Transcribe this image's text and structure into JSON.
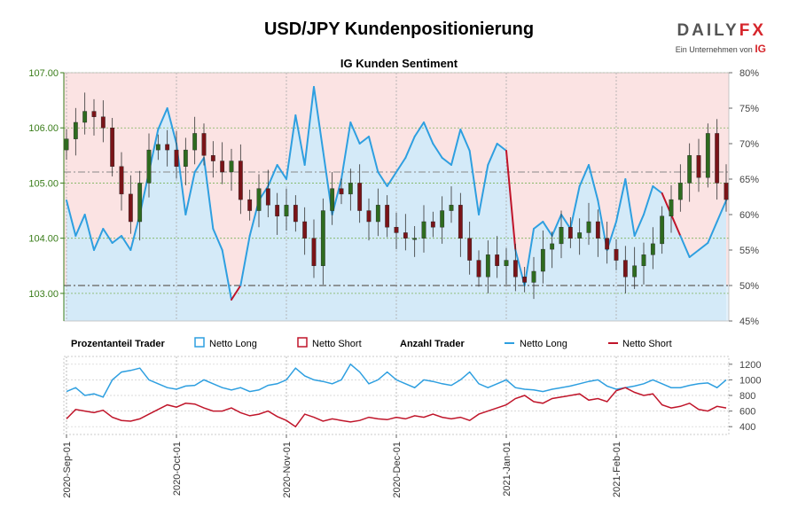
{
  "title": "USD/JPY Kundenpositionierung",
  "subtitle": "IG Kunden Sentiment",
  "logo": {
    "brand_main": "DAILY",
    "brand_accent": "FX",
    "tagline": "Ein Unternehmen von",
    "tagline_brand": "IG"
  },
  "colors": {
    "long": "#2e9fe0",
    "short": "#c0152a",
    "long_fill": "#e3f1fb",
    "short_fill": "#fbe3e3",
    "candle_up": "#2e6b1f",
    "candle_down": "#7a1418",
    "axis_left": "#3a7d1a"
  },
  "legend": {
    "pct_label": "Prozentanteil Trader",
    "pct_long": "Netto Long",
    "pct_short": "Netto Short",
    "count_label": "Anzahl Trader",
    "count_long": "Netto Long",
    "count_short": "Netto Short"
  },
  "chart_data": [
    {
      "type": "candlestick+area",
      "name": "price-and-sentiment",
      "y_left": {
        "label": "USD/JPY",
        "range": [
          102.5,
          107.0
        ],
        "ticks": [
          "107.00",
          "106.00",
          "105.00",
          "104.00",
          "103.00"
        ],
        "tick_values": [
          107,
          106,
          105,
          104,
          103
        ]
      },
      "y_right": {
        "label": "Netto Long %",
        "range": [
          45,
          80
        ],
        "ticks": [
          "80%",
          "75%",
          "70%",
          "65%",
          "60%",
          "55%",
          "50%",
          "45%"
        ],
        "tick_values": [
          80,
          75,
          70,
          65,
          60,
          55,
          50,
          45
        ]
      },
      "reference_lines": {
        "price": 105.2,
        "percent": 50
      },
      "price_samples": [
        105.8,
        106.1,
        106.3,
        106.2,
        106.0,
        105.3,
        104.8,
        104.3,
        105.0,
        105.6,
        105.7,
        105.6,
        105.3,
        105.6,
        105.9,
        105.5,
        105.4,
        105.2,
        105.4,
        104.7,
        104.5,
        104.9,
        104.6,
        104.4,
        104.6,
        104.3,
        104.0,
        103.5,
        104.5,
        104.9,
        104.8,
        105.0,
        104.5,
        104.3,
        104.6,
        104.2,
        104.1,
        104.0,
        104.0,
        104.3,
        104.2,
        104.5,
        104.6,
        104.0,
        103.6,
        103.3,
        103.7,
        103.5,
        103.6,
        103.3,
        103.2,
        103.4,
        103.8,
        103.9,
        104.2,
        104.0,
        104.1,
        104.3,
        104.0,
        103.8,
        103.6,
        103.3,
        103.5,
        103.7,
        103.9,
        104.4,
        104.7,
        105.0,
        105.5,
        105.1,
        105.9,
        105.0,
        104.7
      ],
      "percent_long_samples": [
        62,
        57,
        60,
        55,
        58,
        56,
        57,
        55,
        60,
        66,
        72,
        75,
        70,
        60,
        66,
        68,
        58,
        55,
        48,
        50,
        57,
        62,
        64,
        67,
        65,
        74,
        67,
        78,
        69,
        60,
        65,
        73,
        70,
        71,
        66,
        64,
        66,
        68,
        71,
        73,
        70,
        68,
        67,
        72,
        69,
        60,
        67,
        70,
        69,
        55,
        50,
        58,
        59,
        57,
        60,
        58,
        64,
        67,
        62,
        55,
        59,
        65,
        57,
        60,
        64,
        63,
        60,
        57,
        54,
        55,
        56,
        59,
        62
      ],
      "percent_short_periods": [
        {
          "start_index": 18,
          "end_index": 19
        },
        {
          "start_index": 48,
          "end_index": 49
        },
        {
          "start_index": 65,
          "end_index": 67
        }
      ]
    },
    {
      "type": "line",
      "name": "trader-counts",
      "y_right": {
        "range": [
          300,
          1300
        ],
        "ticks": [
          "1200",
          "1000",
          "800",
          "600",
          "400"
        ],
        "tick_values": [
          1200,
          1000,
          800,
          600,
          400
        ]
      },
      "series": [
        {
          "name": "Netto Long",
          "values": [
            850,
            900,
            800,
            820,
            780,
            1000,
            1100,
            1120,
            1150,
            1000,
            950,
            900,
            880,
            920,
            930,
            1000,
            950,
            900,
            870,
            900,
            850,
            870,
            930,
            950,
            1000,
            1150,
            1050,
            1000,
            980,
            950,
            1000,
            1200,
            1100,
            950,
            1000,
            1100,
            1000,
            950,
            900,
            1000,
            980,
            950,
            930,
            1000,
            1100,
            950,
            900,
            950,
            1000,
            900,
            880,
            870,
            850,
            880,
            900,
            920,
            950,
            980,
            1000,
            920,
            880,
            900,
            920,
            950,
            1000,
            950,
            900,
            900,
            930,
            950,
            960,
            900,
            1000
          ]
        },
        {
          "name": "Netto Short",
          "values": [
            500,
            620,
            600,
            580,
            610,
            520,
            480,
            470,
            500,
            560,
            620,
            680,
            650,
            700,
            690,
            640,
            600,
            600,
            640,
            580,
            540,
            560,
            600,
            530,
            480,
            400,
            560,
            520,
            470,
            500,
            480,
            460,
            480,
            520,
            500,
            490,
            520,
            500,
            540,
            520,
            560,
            520,
            500,
            520,
            480,
            560,
            600,
            640,
            680,
            760,
            800,
            720,
            700,
            760,
            780,
            800,
            820,
            740,
            760,
            720,
            860,
            900,
            840,
            800,
            820,
            680,
            640,
            660,
            700,
            620,
            600,
            660,
            640
          ]
        }
      ]
    }
  ],
  "x_axis": {
    "date_ticks": [
      "2020-Sep-01",
      "2020-Oct-01",
      "2020-Nov-01",
      "2020-Dec-01",
      "2021-Jan-01",
      "2021-Feb-01"
    ],
    "tick_index": [
      0,
      12,
      24,
      36,
      48,
      60
    ],
    "count": 73
  }
}
